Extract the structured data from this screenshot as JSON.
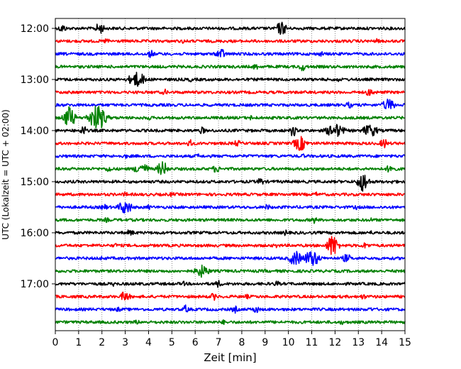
{
  "chart_data": {
    "type": "line",
    "title": "",
    "xlabel": "Zeit  [min]",
    "ylabel": "UTC (Lokalzeit = UTC + 02:00)",
    "xlim": [
      0,
      15
    ],
    "x_ticks": [
      0,
      1,
      2,
      3,
      4,
      5,
      6,
      7,
      8,
      9,
      10,
      11,
      12,
      13,
      14,
      15
    ],
    "y_tick_labels": [
      "12:00",
      "13:00",
      "14:00",
      "15:00",
      "16:00",
      "17:00"
    ],
    "grid": "vertical dotted at each minute",
    "trace_interval_minutes": 15,
    "trace_colors": [
      "#000000",
      "#ff0000",
      "#0000ff",
      "#008000"
    ],
    "traces": [
      {
        "start": "12:00",
        "color": "#000000",
        "events": [
          [
            0.3,
            0.35,
            0.25
          ],
          [
            1.9,
            0.45,
            0.3
          ],
          [
            9.7,
            0.55,
            0.35
          ]
        ]
      },
      {
        "start": "12:15",
        "color": "#ff0000",
        "events": [
          [
            2.2,
            0.25,
            0.2
          ],
          [
            5.5,
            0.2,
            0.15
          ],
          [
            13.8,
            0.2,
            0.2
          ]
        ]
      },
      {
        "start": "12:30",
        "color": "#0000ff",
        "events": [
          [
            4.1,
            0.3,
            0.25
          ],
          [
            7.1,
            0.45,
            0.3
          ],
          [
            11.4,
            0.2,
            0.25
          ]
        ]
      },
      {
        "start": "12:45",
        "color": "#008000",
        "events": [
          [
            8.6,
            0.25,
            0.25
          ],
          [
            10.6,
            0.35,
            0.25
          ]
        ]
      },
      {
        "start": "13:00",
        "color": "#000000",
        "events": [
          [
            3.5,
            0.6,
            0.55
          ],
          [
            5.8,
            0.2,
            0.2
          ],
          [
            12.1,
            0.2,
            0.2
          ]
        ]
      },
      {
        "start": "13:15",
        "color": "#ff0000",
        "events": [
          [
            4.7,
            0.25,
            0.2
          ],
          [
            13.5,
            0.3,
            0.35
          ]
        ]
      },
      {
        "start": "13:30",
        "color": "#0000ff",
        "events": [
          [
            12.6,
            0.25,
            0.3
          ],
          [
            14.3,
            0.5,
            0.4
          ]
        ]
      },
      {
        "start": "13:45",
        "color": "#008000",
        "events": [
          [
            0.6,
            0.9,
            0.35
          ],
          [
            1.8,
            1.0,
            0.55
          ],
          [
            4.0,
            0.2,
            0.2
          ],
          [
            8.4,
            0.2,
            0.2
          ]
        ]
      },
      {
        "start": "14:00",
        "color": "#000000",
        "events": [
          [
            1.2,
            0.45,
            0.2
          ],
          [
            6.3,
            0.3,
            0.2
          ],
          [
            10.2,
            0.5,
            0.2
          ],
          [
            12.0,
            0.55,
            0.6
          ],
          [
            13.5,
            0.5,
            0.5
          ]
        ]
      },
      {
        "start": "14:15",
        "color": "#ff0000",
        "events": [
          [
            5.8,
            0.3,
            0.25
          ],
          [
            7.8,
            0.25,
            0.3
          ],
          [
            10.5,
            0.6,
            0.4
          ],
          [
            14.1,
            0.4,
            0.25
          ]
        ]
      },
      {
        "start": "14:30",
        "color": "#0000ff",
        "events": [
          [
            3.0,
            0.2,
            0.2
          ],
          [
            6.1,
            0.2,
            0.2
          ],
          [
            10.6,
            0.2,
            0.2
          ]
        ]
      },
      {
        "start": "14:45",
        "color": "#008000",
        "events": [
          [
            2.3,
            0.3,
            0.2
          ],
          [
            3.7,
            0.45,
            0.5
          ],
          [
            4.6,
            0.6,
            0.35
          ],
          [
            6.9,
            0.3,
            0.3
          ],
          [
            14.4,
            0.4,
            0.3
          ]
        ]
      },
      {
        "start": "15:00",
        "color": "#000000",
        "events": [
          [
            8.8,
            0.35,
            0.2
          ],
          [
            13.2,
            0.8,
            0.35
          ],
          [
            14.5,
            0.2,
            0.2
          ]
        ]
      },
      {
        "start": "15:15",
        "color": "#ff0000",
        "events": [
          [
            3.0,
            0.2,
            0.2
          ],
          [
            5.0,
            0.2,
            0.2
          ],
          [
            11.2,
            0.2,
            0.2
          ]
        ]
      },
      {
        "start": "15:30",
        "color": "#0000ff",
        "events": [
          [
            2.1,
            0.25,
            0.25
          ],
          [
            3.0,
            0.55,
            0.45
          ],
          [
            4.0,
            0.2,
            0.2
          ],
          [
            9.1,
            0.25,
            0.2
          ],
          [
            12.9,
            0.2,
            0.2
          ]
        ]
      },
      {
        "start": "15:45",
        "color": "#008000",
        "events": [
          [
            2.2,
            0.2,
            0.2
          ],
          [
            11.1,
            0.3,
            0.2
          ],
          [
            13.5,
            0.2,
            0.2
          ]
        ]
      },
      {
        "start": "16:00",
        "color": "#000000",
        "events": [
          [
            3.2,
            0.25,
            0.3
          ],
          [
            9.9,
            0.3,
            0.15
          ],
          [
            13.5,
            0.2,
            0.2
          ]
        ]
      },
      {
        "start": "16:15",
        "color": "#ff0000",
        "events": [
          [
            2.6,
            0.2,
            0.2
          ],
          [
            9.5,
            0.2,
            0.2
          ],
          [
            11.9,
            0.9,
            0.35
          ],
          [
            13.3,
            0.25,
            0.3
          ]
        ]
      },
      {
        "start": "16:30",
        "color": "#0000ff",
        "events": [
          [
            2.0,
            0.2,
            0.2
          ],
          [
            10.3,
            0.6,
            0.4
          ],
          [
            11.0,
            0.65,
            0.5
          ],
          [
            12.5,
            0.35,
            0.3
          ]
        ]
      },
      {
        "start": "16:45",
        "color": "#008000",
        "events": [
          [
            6.3,
            0.5,
            0.45
          ],
          [
            9.0,
            0.15,
            0.2
          ]
        ]
      },
      {
        "start": "17:00",
        "color": "#000000",
        "events": [
          [
            2.5,
            0.2,
            0.2
          ],
          [
            5.5,
            0.2,
            0.2
          ],
          [
            7.0,
            0.3,
            0.25
          ],
          [
            9.5,
            0.25,
            0.2
          ]
        ]
      },
      {
        "start": "17:15",
        "color": "#ff0000",
        "events": [
          [
            3.0,
            0.45,
            0.3
          ],
          [
            6.8,
            0.3,
            0.25
          ],
          [
            8.2,
            0.2,
            0.2
          ],
          [
            13.2,
            0.25,
            0.2
          ]
        ]
      },
      {
        "start": "17:30",
        "color": "#0000ff",
        "events": [
          [
            2.7,
            0.2,
            0.2
          ],
          [
            5.6,
            0.35,
            0.2
          ],
          [
            7.7,
            0.3,
            0.2
          ],
          [
            8.6,
            0.3,
            0.25
          ],
          [
            13.5,
            0.2,
            0.2
          ]
        ]
      },
      {
        "start": "17:45",
        "color": "#008000",
        "events": [
          [
            3.5,
            0.2,
            0.2
          ],
          [
            7.2,
            0.2,
            0.2
          ],
          [
            12.3,
            0.2,
            0.2
          ]
        ]
      }
    ]
  }
}
